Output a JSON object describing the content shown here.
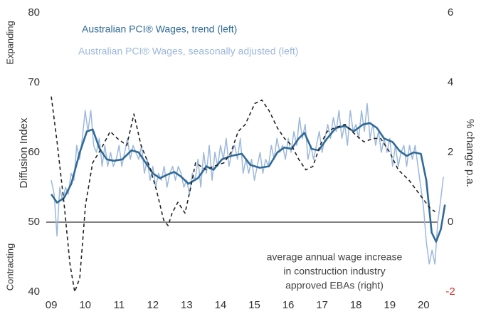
{
  "chart_data": {
    "type": "line",
    "y_label": "Diffusion Index",
    "y2_label": "% change p.a.",
    "upper_zone_label": "Expanding",
    "lower_zone_label": "Contracting",
    "annotation": [
      "average annual wage increase",
      "in construction industry",
      "approved EBAs (right)"
    ],
    "xlim": [
      2008.85,
      2020.75
    ],
    "xticks": [
      {
        "value": 2009,
        "label": "09"
      },
      {
        "value": 2010,
        "label": "10"
      },
      {
        "value": 2011,
        "label": "11"
      },
      {
        "value": 2012,
        "label": "12"
      },
      {
        "value": 2013,
        "label": "13"
      },
      {
        "value": 2014,
        "label": "14"
      },
      {
        "value": 2015,
        "label": "15"
      },
      {
        "value": 2016,
        "label": "16"
      },
      {
        "value": 2017,
        "label": "17"
      },
      {
        "value": 2018,
        "label": "18"
      },
      {
        "value": 2019,
        "label": "19"
      },
      {
        "value": 2020,
        "label": "20"
      }
    ],
    "ylim": [
      40,
      80
    ],
    "yticks": [
      40,
      50,
      60,
      70,
      80
    ],
    "y2lim": [
      -2,
      6
    ],
    "y2ticks": [
      -2,
      0,
      2,
      4,
      6
    ],
    "negative_tick_color": "#d9302c",
    "zero_line": true,
    "series": [
      {
        "name": "Australian PCI® Wages, seasonally adjusted (left)",
        "color": "#9db8dc",
        "width": 1.5,
        "x": [
          2009.0,
          2009.083,
          2009.167,
          2009.25,
          2009.333,
          2009.417,
          2009.5,
          2009.583,
          2009.667,
          2009.75,
          2009.833,
          2009.917,
          2010.0,
          2010.083,
          2010.167,
          2010.25,
          2010.333,
          2010.417,
          2010.5,
          2010.583,
          2010.667,
          2010.75,
          2010.833,
          2010.917,
          2011.0,
          2011.083,
          2011.167,
          2011.25,
          2011.333,
          2011.417,
          2011.5,
          2011.583,
          2011.667,
          2011.75,
          2011.833,
          2011.917,
          2012.0,
          2012.083,
          2012.167,
          2012.25,
          2012.333,
          2012.417,
          2012.5,
          2012.583,
          2012.667,
          2012.75,
          2012.833,
          2012.917,
          2013.0,
          2013.083,
          2013.167,
          2013.25,
          2013.333,
          2013.417,
          2013.5,
          2013.583,
          2013.667,
          2013.75,
          2013.833,
          2013.917,
          2014.0,
          2014.083,
          2014.167,
          2014.25,
          2014.333,
          2014.417,
          2014.5,
          2014.583,
          2014.667,
          2014.75,
          2014.833,
          2014.917,
          2015.0,
          2015.083,
          2015.167,
          2015.25,
          2015.333,
          2015.417,
          2015.5,
          2015.583,
          2015.667,
          2015.75,
          2015.833,
          2015.917,
          2016.0,
          2016.083,
          2016.167,
          2016.25,
          2016.333,
          2016.417,
          2016.5,
          2016.583,
          2016.667,
          2016.75,
          2016.833,
          2016.917,
          2017.0,
          2017.083,
          2017.167,
          2017.25,
          2017.333,
          2017.417,
          2017.5,
          2017.583,
          2017.667,
          2017.75,
          2017.833,
          2017.917,
          2018.0,
          2018.083,
          2018.167,
          2018.25,
          2018.333,
          2018.417,
          2018.5,
          2018.583,
          2018.667,
          2018.75,
          2018.833,
          2018.917,
          2019.0,
          2019.083,
          2019.167,
          2019.25,
          2019.333,
          2019.417,
          2019.5,
          2019.583,
          2019.667,
          2019.75,
          2019.833,
          2019.917,
          2020.0,
          2020.083,
          2020.167,
          2020.25,
          2020.333,
          2020.417,
          2020.5,
          2020.583
        ],
        "values": [
          56,
          54,
          48,
          55,
          53,
          55,
          54,
          57,
          56,
          61,
          59,
          62,
          66,
          63,
          66,
          61,
          60,
          62,
          58,
          61,
          58,
          60,
          58,
          59,
          61,
          58,
          60,
          62,
          59,
          61,
          60,
          59,
          61,
          57,
          59,
          56,
          58,
          55,
          57,
          56,
          58,
          55,
          57,
          58,
          56,
          58,
          57,
          55,
          56,
          54,
          57,
          56,
          59,
          55,
          60,
          57,
          61,
          56,
          60,
          58,
          61,
          59,
          62,
          58,
          60,
          61,
          59,
          62,
          57,
          59,
          57,
          59,
          56,
          58,
          60,
          57,
          59,
          58,
          61,
          59,
          62,
          60,
          61,
          59,
          62,
          60,
          63,
          61,
          65,
          62,
          64,
          59,
          61,
          59,
          61,
          63,
          60,
          62,
          64,
          62,
          65,
          63,
          66,
          62,
          64,
          61,
          66,
          63,
          64,
          62,
          66,
          63,
          67,
          62,
          64,
          61,
          63,
          60,
          62,
          60,
          62,
          58,
          61,
          58,
          60,
          61,
          58,
          61,
          59,
          61,
          58,
          55,
          52,
          47,
          44,
          46,
          44,
          50,
          53,
          56.5
        ]
      },
      {
        "name": "Australian PCI® Wages, trend (left)",
        "color": "#2f6a96",
        "width": 2.6,
        "x": [
          2009.0,
          2009.17,
          2009.38,
          2009.59,
          2009.84,
          2010.05,
          2010.22,
          2010.43,
          2010.64,
          2010.85,
          2011.1,
          2011.37,
          2011.58,
          2011.79,
          2012.0,
          2012.21,
          2012.42,
          2012.63,
          2012.84,
          2013.05,
          2013.33,
          2013.58,
          2013.79,
          2014.04,
          2014.32,
          2014.63,
          2014.88,
          2015.16,
          2015.43,
          2015.68,
          2015.89,
          2016.1,
          2016.31,
          2016.48,
          2016.69,
          2016.9,
          2017.15,
          2017.41,
          2017.68,
          2017.93,
          2018.21,
          2018.41,
          2018.62,
          2018.83,
          2019.08,
          2019.29,
          2019.5,
          2019.71,
          2019.92,
          2020.08,
          2020.24,
          2020.37,
          2020.51,
          2020.63
        ],
        "values": [
          54,
          52.8,
          53.5,
          55.5,
          60,
          63,
          63.3,
          60.5,
          59,
          58.8,
          59,
          60.3,
          60,
          58.5,
          57,
          56.3,
          56.8,
          57.2,
          56.5,
          55.5,
          56.3,
          58,
          57.5,
          59,
          59.5,
          59.8,
          58.2,
          57.8,
          58,
          60,
          60.7,
          60.5,
          62,
          62.8,
          60.5,
          60.3,
          62,
          63.5,
          63.8,
          63,
          64,
          64.2,
          63.5,
          62,
          61.5,
          60.2,
          59.5,
          60,
          59.8,
          56,
          48.5,
          47.2,
          49,
          52.5
        ]
      },
      {
        "color": "#222222",
        "width": 1.6,
        "dash": "5,4",
        "axis": "y2",
        "x": [
          2009.0,
          2009.17,
          2009.38,
          2009.55,
          2009.69,
          2009.84,
          2010.01,
          2010.22,
          2010.47,
          2010.74,
          2010.95,
          2011.23,
          2011.44,
          2011.65,
          2011.9,
          2012.11,
          2012.32,
          2012.45,
          2012.57,
          2012.74,
          2012.95,
          2013.12,
          2013.26,
          2013.58,
          2013.79,
          2014.1,
          2014.31,
          2014.52,
          2014.73,
          2015.01,
          2015.22,
          2015.43,
          2015.68,
          2015.89,
          2016.1,
          2016.31,
          2016.52,
          2016.73,
          2016.94,
          2017.15,
          2017.36,
          2017.68,
          2017.99,
          2018.24,
          2018.52,
          2018.73,
          2019.0,
          2019.25,
          2019.57,
          2019.88,
          2020.19,
          2020.34
        ],
        "values": [
          3.6,
          2.3,
          0.5,
          -1.2,
          -2.0,
          -1.6,
          0.5,
          1.7,
          2.1,
          2.6,
          2.4,
          2.2,
          3.1,
          2.2,
          1.6,
          0.9,
          0.06,
          -0.1,
          0.26,
          0.57,
          0.26,
          1.0,
          1.7,
          1.5,
          1.6,
          1.7,
          2.0,
          2.6,
          2.8,
          3.4,
          3.5,
          3.2,
          2.7,
          2.4,
          2.2,
          1.8,
          1.5,
          1.6,
          2.2,
          2.6,
          2.7,
          2.8,
          2.5,
          2.3,
          2.4,
          2.4,
          2.0,
          1.5,
          1.2,
          0.8,
          0.4,
          0.3
        ]
      }
    ]
  }
}
